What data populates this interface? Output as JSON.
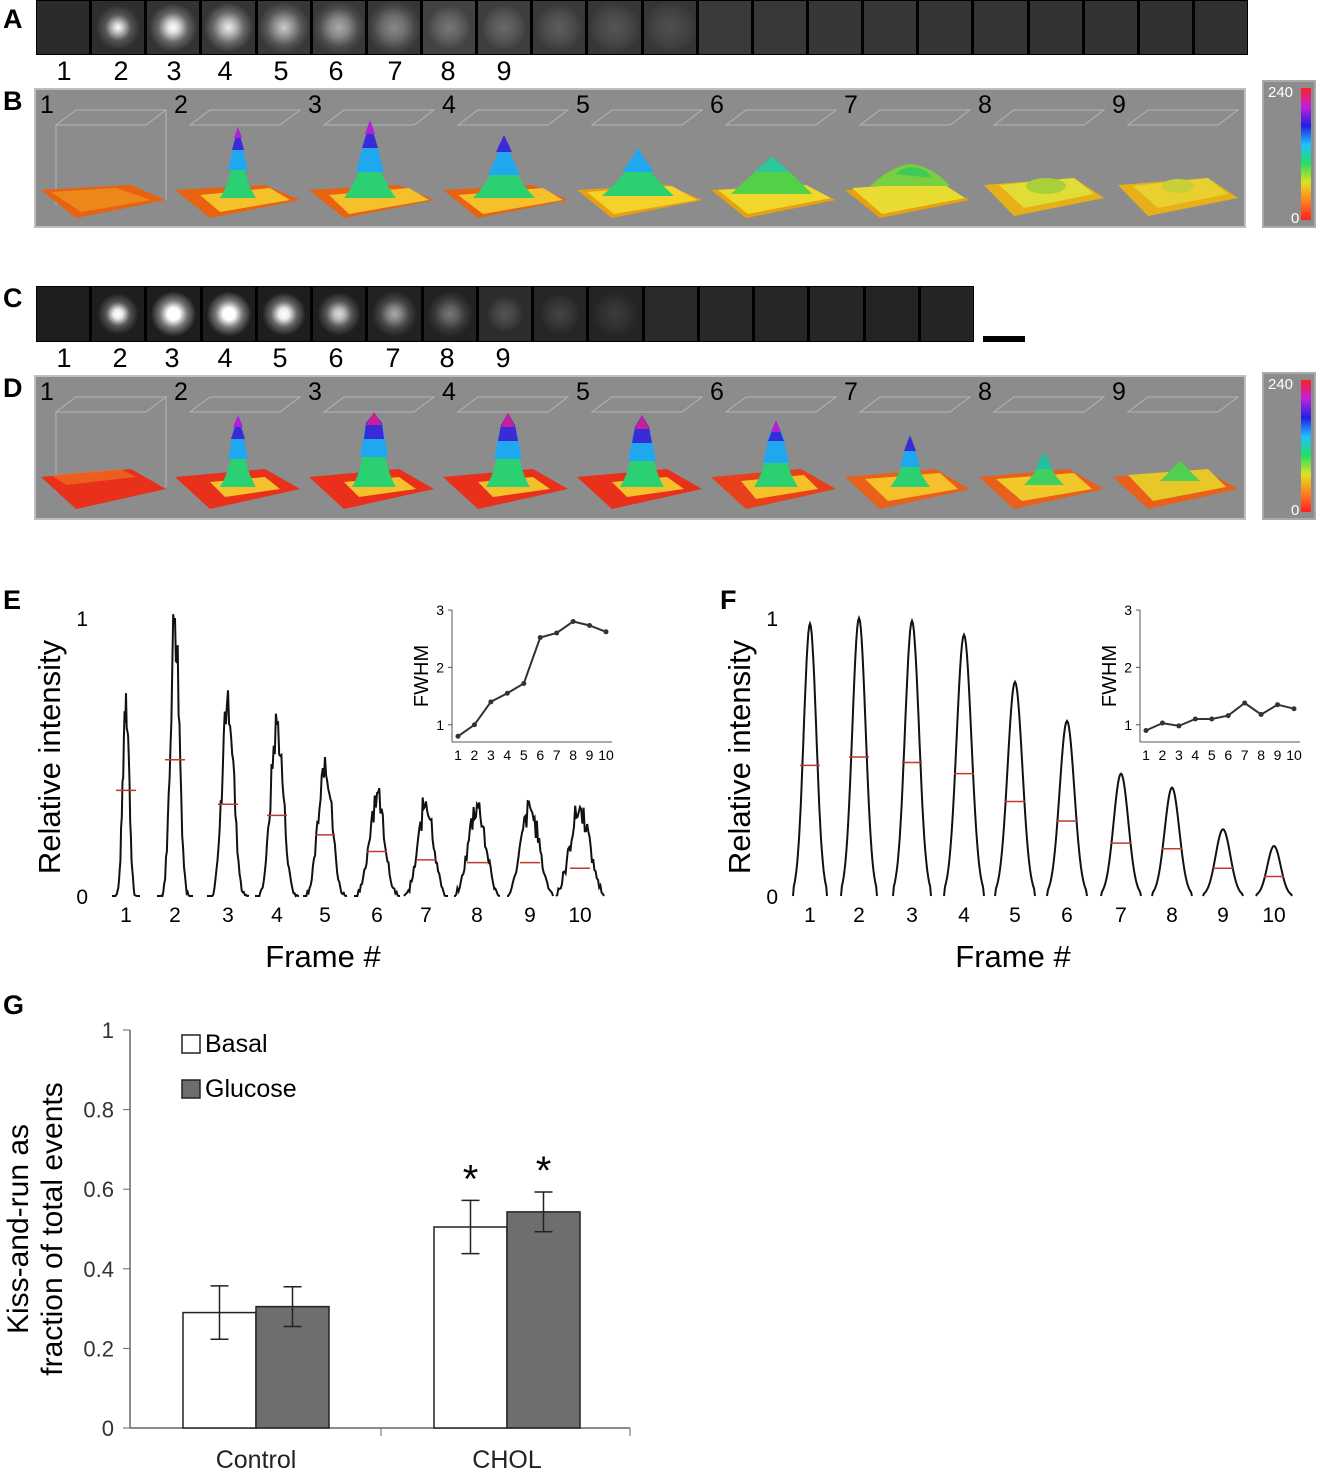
{
  "panels": {
    "A": {
      "label": "A",
      "frames": [
        "1",
        "2",
        "3",
        "4",
        "5",
        "6",
        "7",
        "8",
        "9"
      ]
    },
    "B": {
      "label": "B",
      "frames": [
        "1",
        "2",
        "3",
        "4",
        "5",
        "6",
        "7",
        "8",
        "9"
      ],
      "colorbar_max": "240",
      "colorbar_min": "0"
    },
    "C": {
      "label": "C",
      "frames": [
        "1",
        "2",
        "3",
        "4",
        "5",
        "6",
        "7",
        "8",
        "9"
      ]
    },
    "D": {
      "label": "D",
      "frames": [
        "1",
        "2",
        "3",
        "4",
        "5",
        "6",
        "7",
        "8",
        "9"
      ],
      "colorbar_max": "240",
      "colorbar_min": "0"
    },
    "E": {
      "label": "E"
    },
    "F": {
      "label": "F"
    },
    "G": {
      "label": "G"
    }
  },
  "colors": {
    "half_max_marker": "#c0392b",
    "basal_bar": "#ffffff",
    "glucose_bar": "#6e6e6e"
  },
  "chart_data": [
    {
      "id": "E",
      "type": "line",
      "xlabel": "Frame #",
      "ylabel": "Relative intensity",
      "ylim": [
        0,
        1
      ],
      "yticks": [
        "0",
        "1"
      ],
      "categories": [
        "1",
        "2",
        "3",
        "4",
        "5",
        "6",
        "7",
        "8",
        "9",
        "10"
      ],
      "peak_values": [
        0.73,
        1.0,
        0.74,
        0.62,
        0.5,
        0.37,
        0.34,
        0.33,
        0.32,
        0.32
      ],
      "half_max_values": [
        0.38,
        0.49,
        0.33,
        0.29,
        0.22,
        0.16,
        0.13,
        0.12,
        0.12,
        0.1
      ],
      "inset": {
        "type": "line",
        "ylabel": "FWHM",
        "ylim": [
          0.7,
          3
        ],
        "yticks": [
          "1",
          "2",
          "3"
        ],
        "x": [
          "1",
          "2",
          "3",
          "4",
          "5",
          "6",
          "7",
          "8",
          "9",
          "10"
        ],
        "values": [
          0.8,
          1.0,
          1.4,
          1.55,
          1.72,
          2.52,
          2.6,
          2.8,
          2.73,
          2.62
        ]
      }
    },
    {
      "id": "F",
      "type": "line",
      "xlabel": "Frame #",
      "ylabel": "Relative intensity",
      "ylim": [
        0,
        1
      ],
      "yticks": [
        "0",
        "1"
      ],
      "categories": [
        "1",
        "2",
        "3",
        "4",
        "5",
        "6",
        "7",
        "8",
        "9",
        "10"
      ],
      "peak_values": [
        0.98,
        1.0,
        0.99,
        0.94,
        0.77,
        0.63,
        0.44,
        0.39,
        0.24,
        0.18
      ],
      "half_max_values": [
        0.47,
        0.5,
        0.48,
        0.44,
        0.34,
        0.27,
        0.19,
        0.17,
        0.1,
        0.07
      ],
      "inset": {
        "type": "line",
        "ylabel": "FWHM",
        "ylim": [
          0.7,
          3
        ],
        "yticks": [
          "1",
          "2",
          "3"
        ],
        "x": [
          "1",
          "2",
          "3",
          "4",
          "5",
          "6",
          "7",
          "8",
          "9",
          "10"
        ],
        "values": [
          0.9,
          1.03,
          0.98,
          1.1,
          1.1,
          1.16,
          1.38,
          1.18,
          1.35,
          1.28
        ]
      }
    },
    {
      "id": "G",
      "type": "bar",
      "ylabel": "Kiss-and-run as fraction of total events",
      "ylim": [
        0,
        1
      ],
      "yticks": [
        "0",
        "0.2",
        "0.4",
        "0.6",
        "0.8",
        "1"
      ],
      "categories": [
        "Control",
        "CHOL"
      ],
      "series": [
        {
          "name": "Basal",
          "values": [
            0.29,
            0.505
          ],
          "errors": [
            0.067,
            0.067
          ]
        },
        {
          "name": "Glucose",
          "values": [
            0.305,
            0.543
          ],
          "errors": [
            0.05,
            0.05
          ]
        }
      ],
      "significance": [
        "",
        "*"
      ],
      "legend": "top-left"
    }
  ]
}
